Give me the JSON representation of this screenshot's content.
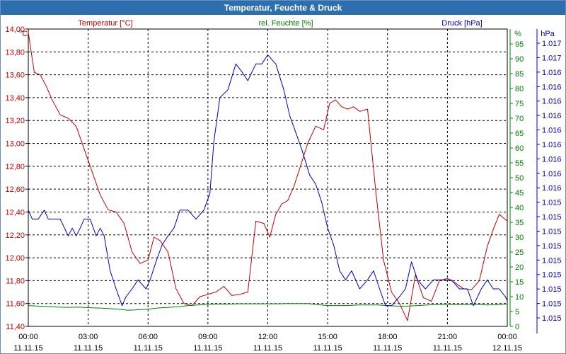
{
  "chart_data": {
    "type": "line",
    "title": "Temperatur, Feuchte & Druck",
    "x_start_hours": 0,
    "x_end_hours": 24,
    "x_ticks": [
      {
        "hour": 0,
        "time": "00:00",
        "date": "11.11.15"
      },
      {
        "hour": 3,
        "time": "03:00",
        "date": "11.11.15"
      },
      {
        "hour": 6,
        "time": "06:00",
        "date": "11.11.15"
      },
      {
        "hour": 9,
        "time": "09:00",
        "date": "11.11.15"
      },
      {
        "hour": 12,
        "time": "12:00",
        "date": "11.11.15"
      },
      {
        "hour": 15,
        "time": "15:00",
        "date": "11.11.15"
      },
      {
        "hour": 18,
        "time": "18:00",
        "date": "11.11.15"
      },
      {
        "hour": 21,
        "time": "21:00",
        "date": "11.11.15"
      },
      {
        "hour": 24,
        "time": "00:00",
        "date": "12.11.15"
      }
    ],
    "axes": {
      "temperature": {
        "label": "Temperatur [°C]",
        "unit": "°C",
        "color": "#c00000",
        "ylim": [
          11.4,
          14.0
        ],
        "ticks": [
          "14,00",
          "13,80",
          "13,60",
          "13,40",
          "13,20",
          "13,00",
          "12,80",
          "12,60",
          "12,40",
          "12,20",
          "12,00",
          "11,80",
          "11,60",
          "11,40"
        ]
      },
      "humidity": {
        "label": "rel. Feuchte [%]",
        "unit": "%",
        "color": "#008000",
        "ylim": [
          0,
          100
        ],
        "ticks": [
          "95",
          "90",
          "85",
          "80",
          "75",
          "70",
          "65",
          "60",
          "55",
          "50",
          "45",
          "40",
          "35",
          "30",
          "25",
          "20",
          "15",
          "10",
          "5",
          "0"
        ]
      },
      "pressure": {
        "label": "Druck [hPa]",
        "unit": "hPa",
        "color": "#0000c0",
        "ylim": [
          1014.9,
          1017.2
        ],
        "ticks": [
          "1.017",
          "1.017",
          "1.016",
          "1.016",
          "1.016",
          "1.016",
          "1.016",
          "1.016",
          "1.016",
          "1.016",
          "1.016",
          "1.015",
          "1.015",
          "1.015",
          "1.015",
          "1.015",
          "1.015",
          "1.015",
          "1.015",
          "1.015"
        ]
      }
    },
    "series": [
      {
        "name": "Temperatur",
        "axis": "temperature",
        "color": "#c00000",
        "x": [
          0,
          0.3,
          0.6,
          0.9,
          1.2,
          1.6,
          2,
          2.4,
          2.8,
          3.2,
          3.6,
          4,
          4.4,
          4.8,
          5.2,
          5.6,
          6,
          6.3,
          6.6,
          7,
          7.4,
          7.8,
          8.2,
          8.6,
          9,
          9.4,
          9.8,
          10.2,
          10.6,
          11,
          11.4,
          11.8,
          12.1,
          12.4,
          12.7,
          13,
          13.3,
          13.6,
          14,
          14.4,
          14.8,
          15.1,
          15.4,
          15.7,
          16,
          16.3,
          16.6,
          17,
          17.4,
          17.8,
          18.2,
          18.6,
          19,
          19.4,
          19.8,
          20.2,
          20.6,
          21,
          21.4,
          21.8,
          22.2,
          22.6,
          23,
          23.3,
          23.6,
          24
        ],
        "values": [
          13.97,
          13.62,
          13.6,
          13.5,
          13.38,
          13.25,
          13.22,
          13.15,
          12.95,
          12.75,
          12.55,
          12.42,
          12.4,
          12.3,
          12.05,
          11.95,
          11.98,
          12.18,
          12.15,
          12.05,
          11.73,
          11.6,
          11.58,
          11.66,
          11.68,
          11.7,
          11.75,
          11.67,
          11.68,
          11.7,
          12.32,
          12.3,
          12.18,
          12.38,
          12.47,
          12.5,
          12.62,
          12.78,
          13.0,
          13.15,
          13.12,
          13.35,
          13.38,
          13.32,
          13.3,
          13.32,
          13.28,
          13.3,
          12.6,
          11.98,
          11.7,
          11.6,
          11.45,
          11.85,
          11.65,
          11.62,
          11.8,
          11.82,
          11.78,
          11.73,
          11.72,
          11.8,
          12.1,
          12.25,
          12.38,
          12.32
        ]
      },
      {
        "name": "rel. Feuchte",
        "axis": "humidity",
        "color": "#008000",
        "x": [
          0,
          0.5,
          1,
          1.5,
          2,
          2.5,
          3,
          3.5,
          4,
          4.5,
          5,
          5.5,
          6,
          6.5,
          7,
          7.5,
          8,
          8.5,
          9,
          9.5,
          10,
          10.5,
          11,
          11.5,
          12,
          12.5,
          13,
          13.5,
          14,
          14.5,
          15,
          15.5,
          16,
          16.5,
          17,
          17.5,
          18,
          18.5,
          19,
          19.5,
          20,
          20.5,
          21,
          21.5,
          22,
          22.5,
          23,
          23.5,
          24
        ],
        "values": [
          7,
          6.8,
          6.7,
          6.5,
          6.4,
          6.5,
          6.3,
          6.2,
          6,
          5.8,
          5.4,
          5.6,
          5.8,
          6.2,
          6.4,
          6.6,
          7,
          7.2,
          7.4,
          7.5,
          7.5,
          7.6,
          7.6,
          7.6,
          7.6,
          7.6,
          7.7,
          7.7,
          7.7,
          7.3,
          7,
          7,
          7,
          7.2,
          7.2,
          7.2,
          7,
          6.8,
          6.8,
          7,
          7.2,
          7.3,
          7.4,
          7.3,
          7.3,
          7.4,
          7.2,
          7.3,
          7.5
        ]
      },
      {
        "name": "Druck",
        "axis": "pressure",
        "color": "#0000c0",
        "x": [
          0,
          0.2,
          0.5,
          0.8,
          1,
          1.3,
          1.6,
          2,
          2.2,
          2.4,
          2.6,
          2.8,
          3.1,
          3.4,
          3.6,
          3.8,
          4.1,
          4.4,
          4.7,
          4.9,
          5.2,
          5.5,
          5.9,
          6.1,
          6.4,
          6.7,
          7,
          7.3,
          7.6,
          8,
          8.4,
          8.8,
          9.1,
          9.3,
          9.6,
          10,
          10.4,
          10.7,
          11,
          11.4,
          11.7,
          12,
          12.4,
          12.8,
          13.1,
          13.4,
          13.7,
          14.1,
          14.4,
          14.7,
          15,
          15.3,
          15.6,
          15.9,
          16.2,
          16.6,
          17,
          17.3,
          17.6,
          17.9,
          18.2,
          18.6,
          18.9,
          19.2,
          19.5,
          19.9,
          20.3,
          20.7,
          21.2,
          21.6,
          22,
          22.3,
          22.7,
          23,
          23.3,
          23.6,
          23.9,
          24
        ],
        "values": [
          1015.8,
          1015.73,
          1015.73,
          1015.8,
          1015.73,
          1015.73,
          1015.73,
          1015.6,
          1015.66,
          1015.6,
          1015.66,
          1015.73,
          1015.73,
          1015.6,
          1015.66,
          1015.6,
          1015.33,
          1015.19,
          1015.06,
          1015.13,
          1015.19,
          1015.26,
          1015.19,
          1015.26,
          1015.4,
          1015.53,
          1015.6,
          1015.66,
          1015.8,
          1015.8,
          1015.73,
          1015.8,
          1015.93,
          1016.33,
          1016.67,
          1016.73,
          1016.93,
          1016.87,
          1016.8,
          1016.93,
          1016.93,
          1017.0,
          1016.93,
          1016.73,
          1016.53,
          1016.4,
          1016.27,
          1016.07,
          1016.0,
          1015.86,
          1015.66,
          1015.53,
          1015.33,
          1015.26,
          1015.33,
          1015.19,
          1015.26,
          1015.33,
          1015.19,
          1015.06,
          1015.06,
          1015.13,
          1015.19,
          1015.4,
          1015.26,
          1015.19,
          1015.26,
          1015.26,
          1015.26,
          1015.19,
          1015.19,
          1015.06,
          1015.19,
          1015.26,
          1015.19,
          1015.19,
          1015.13,
          1015.1
        ]
      }
    ]
  }
}
